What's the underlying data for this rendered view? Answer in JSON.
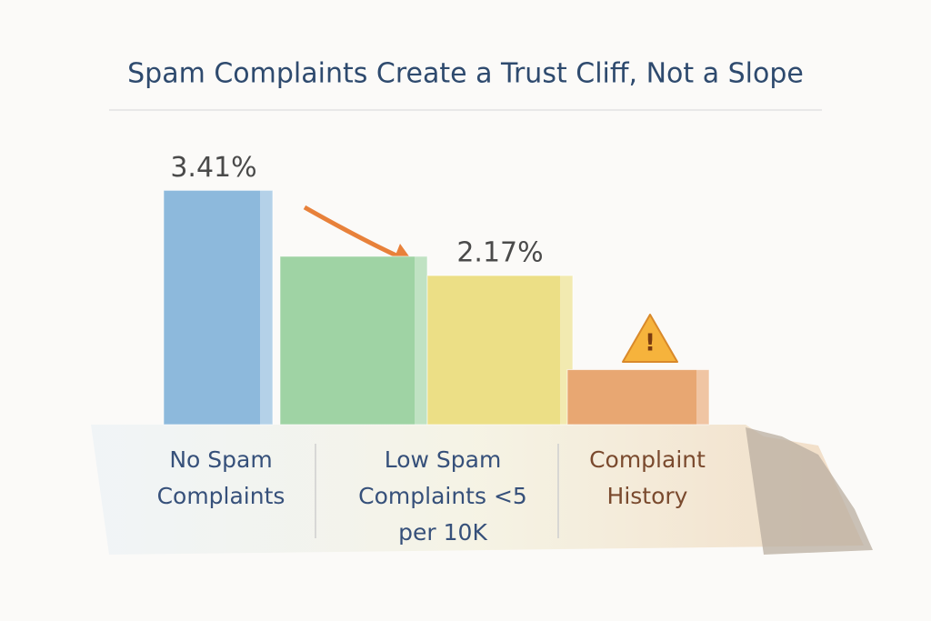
{
  "chart_data": {
    "type": "bar",
    "title": "Spam Complaints Create a Trust Cliff, Not a Slope",
    "categories": [
      "No Spam Complaints",
      null,
      "Low Spam Complaints <5 per 10K",
      "Complaint History"
    ],
    "values": [
      3.41,
      2.45,
      2.17,
      0.8
    ],
    "value_labels": [
      "3.41%",
      null,
      "2.17%",
      null
    ],
    "colors": [
      "#8db9dc",
      "#9fd3a4",
      "#ecdf86",
      "#e8a772"
    ],
    "ylim": [
      0,
      3.6
    ]
  }
}
